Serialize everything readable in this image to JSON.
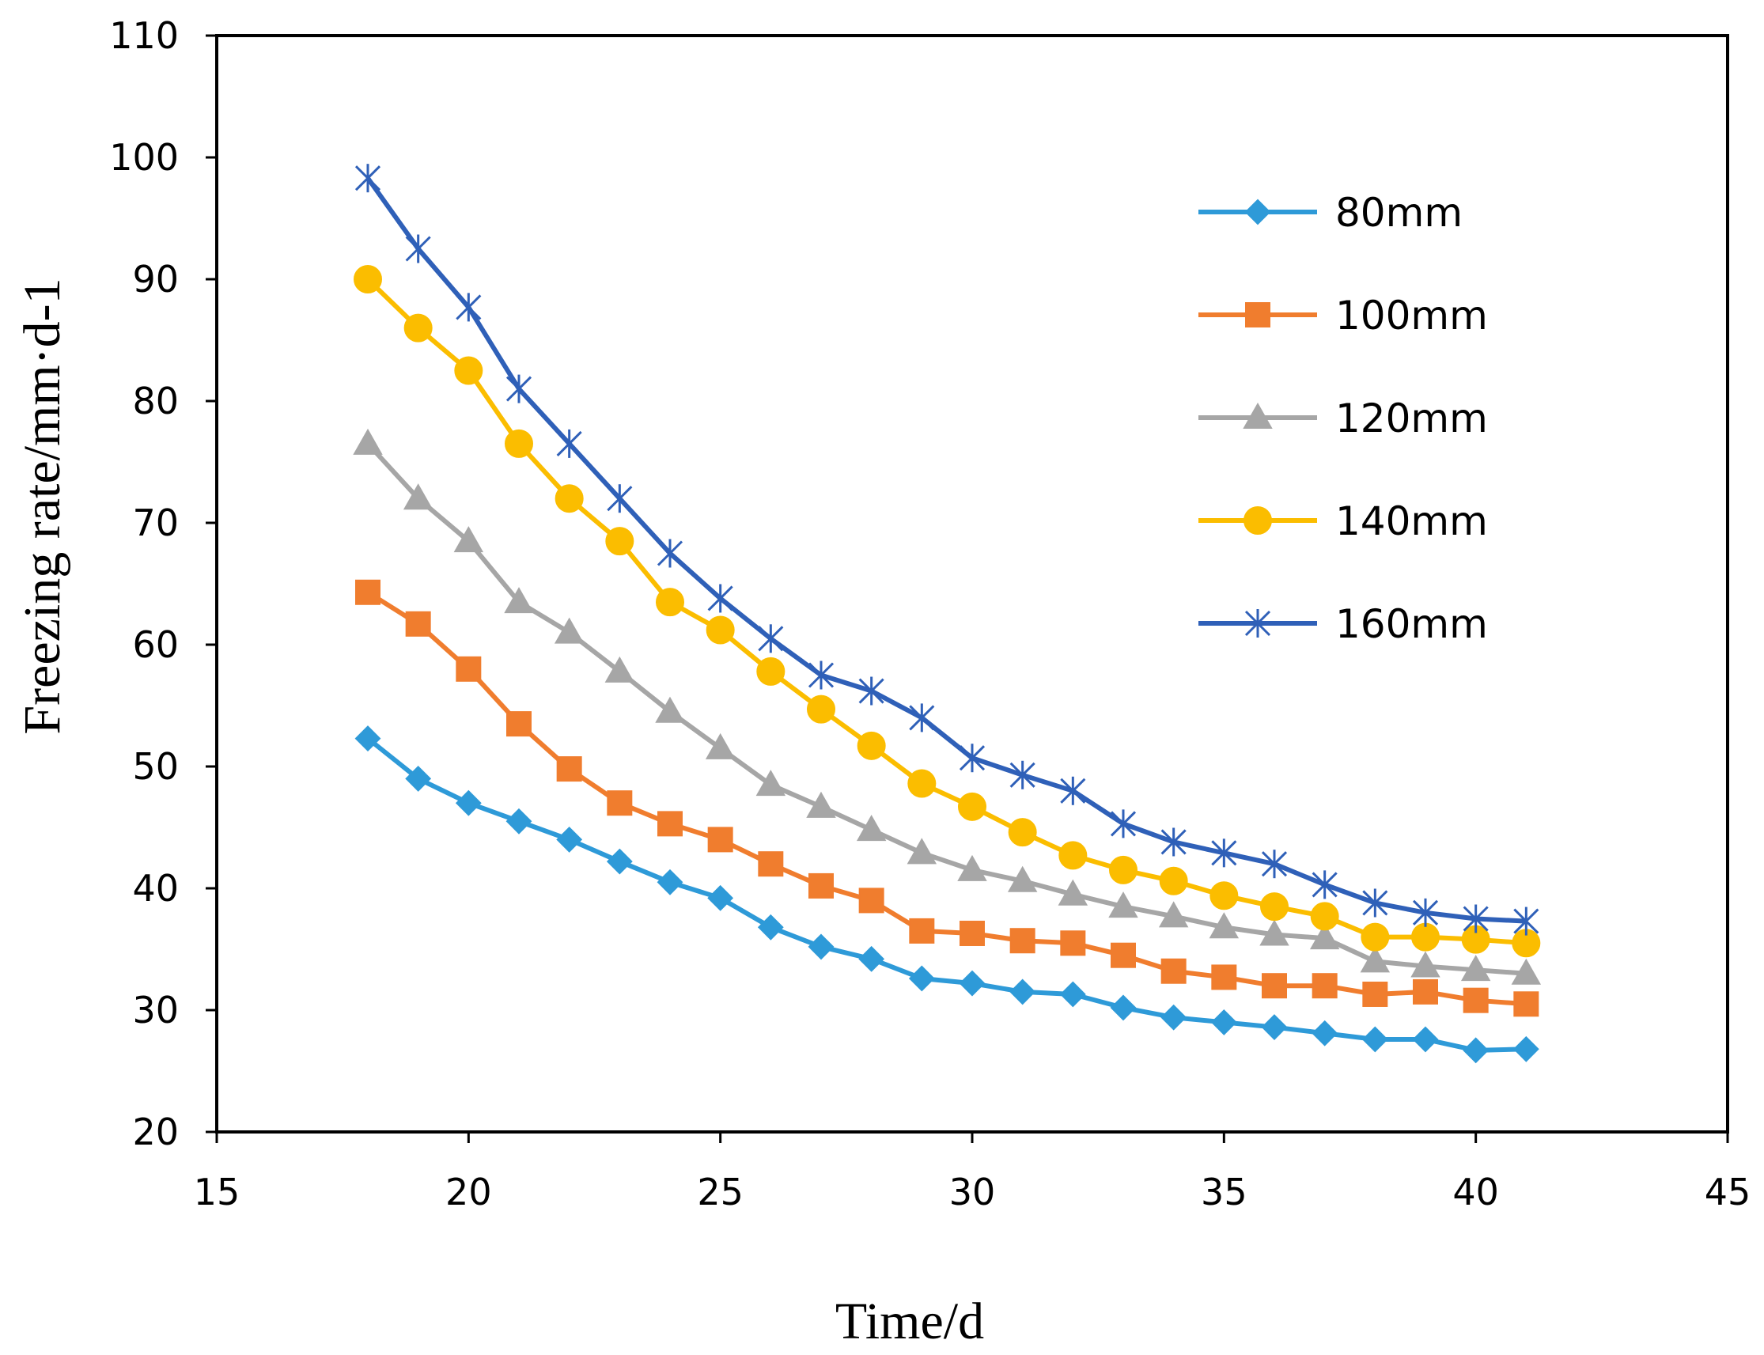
{
  "chart_data": {
    "type": "line",
    "title": "",
    "xlabel": "Time/d",
    "ylabel": "Freezing rate/mm·d-1",
    "xlim": [
      15,
      45
    ],
    "ylim": [
      20,
      110
    ],
    "xticks": [
      15,
      20,
      25,
      30,
      35,
      40,
      45
    ],
    "yticks": [
      20,
      30,
      40,
      50,
      60,
      70,
      80,
      90,
      100,
      110
    ],
    "grid": false,
    "legend_position": "right",
    "x": [
      18,
      19,
      20,
      21,
      22,
      23,
      24,
      25,
      26,
      27,
      28,
      29,
      30,
      31,
      32,
      33,
      34,
      35,
      36,
      37,
      38,
      39,
      40,
      41
    ],
    "series": [
      {
        "name": "80mm",
        "color": "#2e9ad8",
        "marker": "diamond",
        "values": [
          52.3,
          49.0,
          47.0,
          45.5,
          44.0,
          42.2,
          40.5,
          39.2,
          36.8,
          35.2,
          34.2,
          32.6,
          32.2,
          31.5,
          31.3,
          30.2,
          29.4,
          29.0,
          28.6,
          28.1,
          27.6,
          27.6,
          26.7,
          26.8
        ]
      },
      {
        "name": "100mm",
        "color": "#f07d2e",
        "marker": "square",
        "values": [
          64.3,
          61.7,
          58.0,
          53.5,
          49.8,
          47.0,
          45.3,
          44.0,
          42.0,
          40.2,
          39.0,
          36.5,
          36.3,
          35.7,
          35.5,
          34.5,
          33.2,
          32.7,
          32.0,
          32.0,
          31.3,
          31.5,
          30.8,
          30.5
        ]
      },
      {
        "name": "120mm",
        "color": "#a6a6a6",
        "marker": "triangle",
        "values": [
          76.5,
          72.0,
          68.5,
          63.5,
          61.0,
          57.8,
          54.5,
          51.5,
          48.5,
          46.7,
          44.8,
          42.9,
          41.5,
          40.6,
          39.5,
          38.5,
          37.7,
          36.8,
          36.2,
          35.9,
          34.0,
          33.6,
          33.3,
          33.0
        ]
      },
      {
        "name": "140mm",
        "color": "#fbbd00",
        "marker": "circle",
        "values": [
          90.0,
          86.0,
          82.5,
          76.5,
          72.0,
          68.5,
          63.5,
          61.2,
          57.8,
          54.7,
          51.7,
          48.6,
          46.7,
          44.6,
          42.7,
          41.5,
          40.6,
          39.4,
          38.5,
          37.7,
          36.0,
          36.0,
          35.8,
          35.5
        ]
      },
      {
        "name": "160mm",
        "color": "#2f60b8",
        "marker": "star",
        "values": [
          98.3,
          92.5,
          87.7,
          81.0,
          76.5,
          72.0,
          67.5,
          63.8,
          60.5,
          57.5,
          56.2,
          54.0,
          50.7,
          49.3,
          48.0,
          45.3,
          43.8,
          42.9,
          42.0,
          40.3,
          38.8,
          38.0,
          37.5,
          37.3
        ]
      }
    ]
  }
}
